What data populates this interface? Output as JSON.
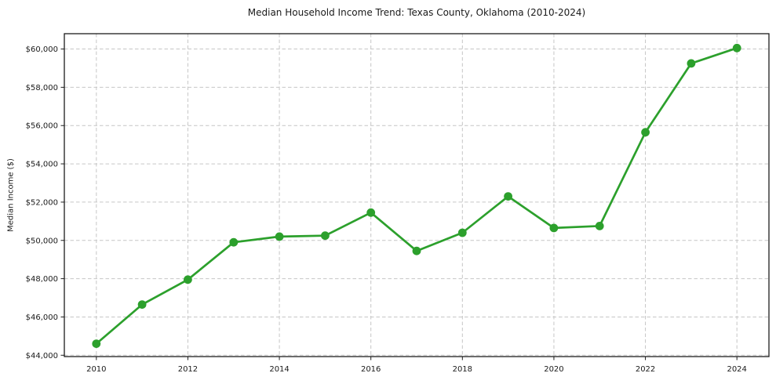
{
  "chart_data": {
    "type": "line",
    "title": "Median Household Income Trend: Texas County, Oklahoma (2010-2024)",
    "xlabel": "",
    "ylabel": "Median Income ($)",
    "x": [
      2010,
      2011,
      2012,
      2013,
      2014,
      2015,
      2016,
      2017,
      2018,
      2019,
      2020,
      2021,
      2022,
      2023,
      2024
    ],
    "series": [
      {
        "name": "Median Household Income",
        "values": [
          44600,
          46650,
          47950,
          49900,
          50200,
          50250,
          51450,
          49450,
          50400,
          52300,
          50650,
          50750,
          55650,
          59250,
          60050
        ],
        "color": "#2ca02c",
        "marker": "circle"
      }
    ],
    "xticks": [
      2010,
      2012,
      2014,
      2016,
      2018,
      2020,
      2022,
      2024
    ],
    "xtick_labels": [
      "2010",
      "2012",
      "2014",
      "2016",
      "2018",
      "2020",
      "2022",
      "2024"
    ],
    "yticks": [
      44000,
      46000,
      48000,
      50000,
      52000,
      54000,
      56000,
      58000,
      60000
    ],
    "ytick_labels": [
      "$44,000",
      "$46,000",
      "$48,000",
      "$50,000",
      "$52,000",
      "$54,000",
      "$56,000",
      "$58,000",
      "$60,000"
    ],
    "xlim": [
      2009.3,
      2024.7
    ],
    "ylim": [
      43930,
      60800
    ],
    "grid": true,
    "grid_style": "dashed",
    "legend": false,
    "colors": {
      "line": "#2ca02c",
      "grid": "#c6c6c6",
      "axis": "#1c1c1c",
      "text": "#1a1a1a",
      "background": "#ffffff"
    }
  }
}
